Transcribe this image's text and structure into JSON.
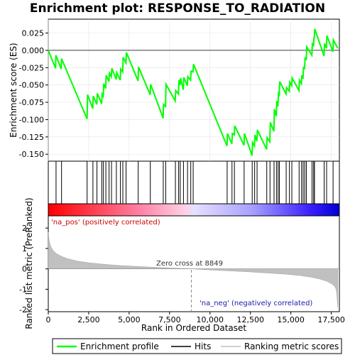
{
  "chart_data": {
    "type": "line",
    "title": "Enrichment plot: RESPONSE_TO_RADIATION",
    "panels": {
      "enrichment": {
        "ylabel": "Enrichment score (ES)",
        "ylim": [
          -0.16,
          0.045
        ],
        "yticks": [
          -0.15,
          -0.125,
          -0.1,
          -0.075,
          -0.05,
          -0.025,
          0.0,
          0.025
        ],
        "ytick_labels": [
          "-0.150",
          "-0.125",
          "-0.100",
          "-0.075",
          "-0.050",
          "-0.025",
          "0.000",
          "0.025"
        ],
        "series": {
          "name": "Enrichment profile",
          "color": "#00ff00",
          "x": [
            0,
            450,
            470,
            800,
            820,
            2400,
            2430,
            2750,
            2780,
            3000,
            3030,
            3300,
            3330,
            3400,
            3430,
            3550,
            3580,
            3750,
            3780,
            3900,
            3930,
            4200,
            4230,
            4450,
            4480,
            4600,
            4630,
            4800,
            4830,
            5550,
            5580,
            6300,
            6330,
            7100,
            7130,
            7250,
            7280,
            7850,
            7880,
            8050,
            8080,
            8150,
            8180,
            8350,
            8380,
            8600,
            8630,
            8800,
            8830,
            8950,
            8980,
            11050,
            11080,
            11350,
            11380,
            11500,
            11530,
            12100,
            12130,
            12600,
            12630,
            12750,
            12780,
            12900,
            12930,
            13500,
            13530,
            13700,
            13730,
            13950,
            13980,
            14100,
            14130,
            14200,
            14230,
            14280,
            14310,
            14700,
            14730,
            14900,
            14930,
            15050,
            15080,
            15500,
            15530,
            15650,
            15680,
            15750,
            15780,
            15850,
            15880,
            15950,
            15980,
            16300,
            16330,
            16400,
            16430,
            16450,
            16480,
            17050,
            17080,
            17200,
            17230,
            17600,
            17630,
            17900
          ],
          "y": [
            0.0,
            -0.026,
            -0.007,
            -0.027,
            -0.012,
            -0.099,
            -0.064,
            -0.084,
            -0.066,
            -0.078,
            -0.062,
            -0.077,
            -0.063,
            -0.066,
            -0.048,
            -0.055,
            -0.036,
            -0.045,
            -0.033,
            -0.038,
            -0.026,
            -0.042,
            -0.032,
            -0.043,
            -0.027,
            -0.031,
            -0.01,
            -0.018,
            -0.003,
            -0.044,
            -0.024,
            -0.064,
            -0.049,
            -0.098,
            -0.078,
            -0.081,
            -0.049,
            -0.073,
            -0.058,
            -0.063,
            -0.043,
            -0.05,
            -0.04,
            -0.057,
            -0.039,
            -0.051,
            -0.038,
            -0.043,
            -0.03,
            -0.031,
            -0.02,
            -0.138,
            -0.12,
            -0.135,
            -0.12,
            -0.122,
            -0.109,
            -0.137,
            -0.12,
            -0.152,
            -0.133,
            -0.138,
            -0.122,
            -0.131,
            -0.115,
            -0.143,
            -0.126,
            -0.132,
            -0.104,
            -0.117,
            -0.085,
            -0.095,
            -0.073,
            -0.081,
            -0.062,
            -0.064,
            -0.045,
            -0.063,
            -0.054,
            -0.059,
            -0.046,
            -0.051,
            -0.04,
            -0.058,
            -0.043,
            -0.048,
            -0.036,
            -0.041,
            -0.025,
            -0.026,
            -0.01,
            -0.014,
            0.005,
            -0.007,
            0.011,
            0.006,
            0.019,
            0.018,
            0.031,
            -0.008,
            0.01,
            0.003,
            0.021,
            -0.002,
            0.015,
            0.003
          ]
        }
      },
      "hits": {
        "positions": [
          480,
          820,
          2400,
          2760,
          3010,
          3310,
          3410,
          3560,
          3760,
          3910,
          4210,
          4460,
          4610,
          4810,
          5560,
          6310,
          7110,
          7260,
          7860,
          8060,
          8160,
          8360,
          8610,
          8810,
          8960,
          11060,
          11360,
          11510,
          12110,
          12610,
          12760,
          12910,
          13510,
          13710,
          13960,
          14110,
          14210,
          14290,
          14710,
          14910,
          15060,
          15510,
          15660,
          15760,
          15860,
          15960,
          16310,
          16410,
          16460,
          17060,
          17210,
          17610
        ]
      },
      "ranking": {
        "ylabel": "Ranked list metric (PreRanked)",
        "ylim": [
          -2.1,
          2.6
        ],
        "yticks": [
          -2,
          -1,
          0,
          1,
          2
        ],
        "ytick_labels": [
          "-2",
          "-1",
          "0",
          "1",
          "2"
        ],
        "x": [
          0,
          60,
          150,
          300,
          500,
          800,
          1200,
          1800,
          2500,
          3500,
          4500,
          5500,
          6500,
          7500,
          8300,
          8849,
          9500,
          10500,
          11500,
          12500,
          13500,
          14500,
          15500,
          16200,
          16800,
          17200,
          17500,
          17700,
          17800,
          17850,
          17900
        ],
        "values": [
          1.8,
          1.35,
          1.1,
          0.9,
          0.75,
          0.62,
          0.5,
          0.38,
          0.3,
          0.22,
          0.16,
          0.12,
          0.08,
          0.04,
          0.015,
          0.0,
          -0.03,
          -0.07,
          -0.11,
          -0.15,
          -0.2,
          -0.25,
          -0.32,
          -0.4,
          -0.5,
          -0.6,
          -0.72,
          -0.85,
          -1.0,
          -1.3,
          -1.9
        ],
        "zero_cross_label": "Zero cross at 8849",
        "zero_cross": 8849,
        "pos_label": "'na_pos' (positively correlated)",
        "neg_label": "'na_neg' (negatively correlated)"
      }
    },
    "xlabel": "Rank in Ordered Dataset",
    "xlim": [
      0,
      18000
    ],
    "xticks": [
      0,
      2500,
      5000,
      7500,
      10000,
      12500,
      15000,
      17500
    ],
    "xtick_labels": [
      "0",
      "2,500",
      "5,000",
      "7,500",
      "10,000",
      "12,500",
      "15,000",
      "17,500"
    ],
    "legend": {
      "placement": "bottom",
      "items": [
        {
          "label": "Enrichment profile",
          "color": "#00ff00"
        },
        {
          "label": "Hits",
          "color": "#000000"
        },
        {
          "label": "Ranking metric scores",
          "color": "#c0c0c0"
        }
      ]
    }
  }
}
